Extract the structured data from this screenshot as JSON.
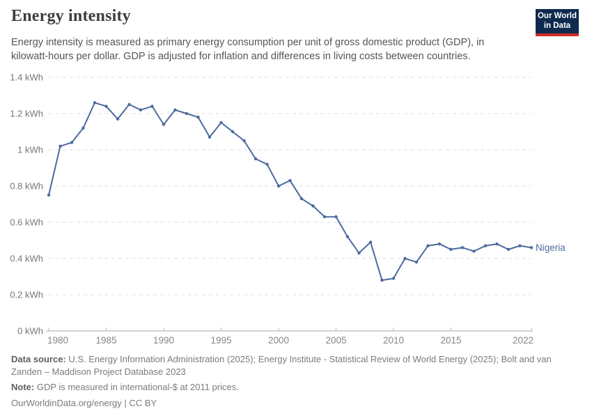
{
  "header": {
    "title": "Energy intensity",
    "subtitle": "Energy intensity is measured as primary energy consumption per unit of gross domestic product (GDP), in kilowatt-hours per dollar. GDP is adjusted for inflation and differences in living costs between countries."
  },
  "logo": {
    "line1": "Our World",
    "line2": "in Data",
    "bg_color": "#0e2a4f",
    "accent_color": "#cf2b23"
  },
  "chart_data": {
    "type": "line",
    "title": "Energy intensity",
    "unit": "kWh",
    "xlim": [
      1980,
      2022
    ],
    "ylim": [
      0,
      1.4
    ],
    "grid": "horizontal-dashed",
    "legend_position": "line-end-label",
    "grid_color": "#dedede",
    "axis_color": "#a8a8a8",
    "tick_label_color": "#868686",
    "x_ticks": [
      [
        1980,
        "1980"
      ],
      [
        1985,
        "1985"
      ],
      [
        1990,
        "1990"
      ],
      [
        1995,
        "1995"
      ],
      [
        2000,
        "2000"
      ],
      [
        2005,
        "2005"
      ],
      [
        2010,
        "2010"
      ],
      [
        2015,
        "2015"
      ],
      [
        2022,
        "2022"
      ]
    ],
    "y_ticks": [
      [
        0,
        "0 kWh"
      ],
      [
        0.2,
        "0.2 kWh"
      ],
      [
        0.4,
        "0.4 kWh"
      ],
      [
        0.6,
        "0.6 kWh"
      ],
      [
        0.8,
        "0.8 kWh"
      ],
      [
        1,
        "1 kWh"
      ],
      [
        1.2,
        "1.2 kWh"
      ],
      [
        1.4,
        "1.4 kWh"
      ]
    ],
    "series": [
      {
        "name": "Nigeria",
        "color": "#4c6a9e",
        "x": [
          1980,
          1981,
          1982,
          1983,
          1984,
          1985,
          1986,
          1987,
          1988,
          1989,
          1990,
          1991,
          1992,
          1993,
          1994,
          1995,
          1996,
          1997,
          1998,
          1999,
          2000,
          2001,
          2002,
          2003,
          2004,
          2005,
          2006,
          2007,
          2008,
          2009,
          2010,
          2011,
          2012,
          2013,
          2014,
          2015,
          2016,
          2017,
          2018,
          2019,
          2020,
          2021,
          2022
        ],
        "values": [
          0.75,
          1.02,
          1.04,
          1.12,
          1.26,
          1.24,
          1.17,
          1.25,
          1.22,
          1.24,
          1.14,
          1.22,
          1.2,
          1.18,
          1.07,
          1.15,
          1.1,
          1.05,
          0.95,
          0.92,
          0.8,
          0.83,
          0.73,
          0.69,
          0.63,
          0.63,
          0.52,
          0.43,
          0.49,
          0.28,
          0.29,
          0.4,
          0.38,
          0.47,
          0.48,
          0.45,
          0.46,
          0.44,
          0.47,
          0.48,
          0.45,
          0.47,
          0.46
        ]
      }
    ]
  },
  "footer": {
    "datasource_label": "Data source:",
    "datasource_text": " U.S. Energy Information Administration (2025); Energy Institute - Statistical Review of World Energy (2025); Bolt and van Zanden – Maddison Project Database 2023",
    "note_label": "Note:",
    "note_text": " GDP is measured in international-$ at 2011 prices.",
    "license_text": "OurWorldinData.org/energy | CC BY"
  }
}
